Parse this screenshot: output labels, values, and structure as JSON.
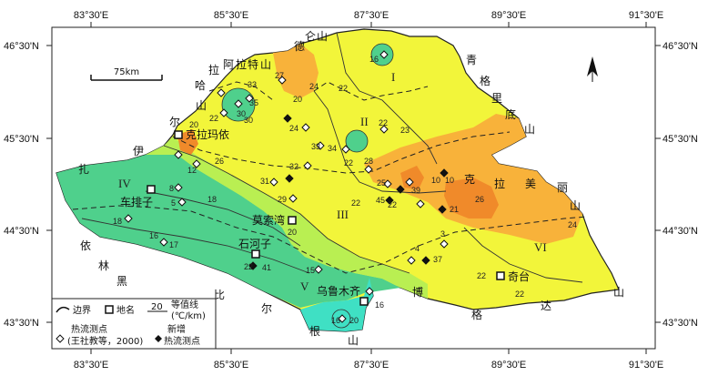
{
  "axes": {
    "top_lon": [
      "83°30'E",
      "85°30'E",
      "87°30'E",
      "89°30'E",
      "91°30'E"
    ],
    "bottom_lon": [
      "83°30'E",
      "85°30'E",
      "87°30'E",
      "89°30'E",
      "91°30'E"
    ],
    "left_lat": [
      "46°30'N",
      "45°30'N",
      "44°30'N",
      "43°30'N"
    ],
    "right_lat": [
      "46°30'N",
      "45°30'N",
      "44°30'N",
      "43°30'N"
    ]
  },
  "scale_bar": "75km",
  "north_arrow": "north-arrow-icon",
  "colors": {
    "green": "#4fd08c",
    "yellow": "#f2f53a",
    "orange": "#f8b23a",
    "cyan": "#3fe0c4",
    "lime": "#b9ef52"
  },
  "places": {
    "karamay": "克拉玛依",
    "chepaizi": "车排子",
    "mosuowan": "莫索湾",
    "shihezi": "石河子",
    "urumqi": "乌鲁木齐",
    "qitai": "奇台"
  },
  "mountain_chars": [
    "德",
    "仑",
    "山",
    "青",
    "格",
    "里",
    "底",
    "山",
    "哈",
    "拉",
    "阿",
    "拉",
    "特",
    "山",
    "山",
    "尔",
    "伊",
    "扎",
    "依",
    "林",
    "黑",
    "比",
    "尔",
    "根",
    "山",
    "博",
    "格",
    "达",
    "山",
    "克",
    "拉",
    "美",
    "丽",
    "山"
  ],
  "zones": [
    "I",
    "II",
    "III",
    "IV",
    "V",
    "VI"
  ],
  "iso_labels": [
    "16",
    "22",
    "24",
    "27",
    "20",
    "33",
    "35",
    "30",
    "22",
    "24",
    "26",
    "32",
    "31",
    "29",
    "30",
    "22",
    "34",
    "33",
    "23",
    "22",
    "22",
    "18",
    "16",
    "17",
    "18",
    "20",
    "22",
    "20",
    "16",
    "15",
    "41",
    "16",
    "22",
    "22",
    "26",
    "24",
    "22",
    "21",
    "45",
    "28",
    "25",
    "39",
    "10",
    "10",
    "4",
    "3",
    "37",
    "8",
    "5",
    "12",
    "20"
  ],
  "legend": {
    "boundary": "边界",
    "place": "地名",
    "isoline": "等值线",
    "isoline_value": "20",
    "isoline_unit": "(℃/km)",
    "old_points": "热流测点",
    "old_points_src": "(王社教等，2000)",
    "new_points": "新增",
    "new_points_2": "热流测点"
  }
}
